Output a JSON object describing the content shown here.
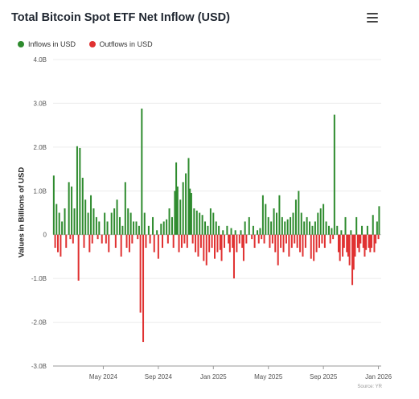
{
  "title": "Total Bitcoin Spot ETF Net Inflow (USD)",
  "menu_icon": "hamburger-menu-icon",
  "legend": [
    {
      "label": "Inflows in USD",
      "color": "#2e8b2e"
    },
    {
      "label": "Outflows in USD",
      "color": "#e03131"
    }
  ],
  "source": "Source: YR",
  "chart_data": {
    "type": "bar",
    "title": "Total Bitcoin Spot ETF Net Inflow (USD)",
    "ylabel": "Values in Billions of USD",
    "xlabel": "",
    "ylim": [
      -3.0,
      4.0
    ],
    "y_ticks": [
      "4.0B",
      "3.0B",
      "2.0B",
      "1.0B",
      "0",
      "-1.0B",
      "-2.0B",
      "-3.0B"
    ],
    "y_tick_values": [
      4,
      3,
      2,
      1,
      0,
      -1,
      -2,
      -3
    ],
    "x_tick_labels": [
      "May 2024",
      "Sep 2024",
      "Jan 2025",
      "May 2025",
      "Sep 2025",
      "Jan 2026"
    ],
    "x_tick_months": [
      4.0,
      8.0,
      12.0,
      16.0,
      20.0,
      24.0
    ],
    "x_range_months": [
      0.35,
      24.2
    ],
    "grid": true,
    "legend_position": "top-left",
    "series": [
      {
        "name": "Inflows in USD",
        "color": "#2e8b2e",
        "points": [
          [
            0.4,
            1.35
          ],
          [
            0.6,
            0.7
          ],
          [
            0.8,
            0.5
          ],
          [
            1.0,
            0.3
          ],
          [
            1.2,
            0.6
          ],
          [
            1.5,
            1.2
          ],
          [
            1.7,
            1.1
          ],
          [
            1.9,
            0.6
          ],
          [
            2.1,
            2.02
          ],
          [
            2.3,
            1.98
          ],
          [
            2.5,
            1.3
          ],
          [
            2.7,
            0.8
          ],
          [
            2.9,
            0.5
          ],
          [
            3.1,
            0.9
          ],
          [
            3.3,
            0.6
          ],
          [
            3.5,
            0.4
          ],
          [
            3.7,
            0.3
          ],
          [
            4.1,
            0.5
          ],
          [
            4.3,
            0.3
          ],
          [
            4.6,
            0.5
          ],
          [
            4.8,
            0.6
          ],
          [
            5.0,
            0.8
          ],
          [
            5.2,
            0.4
          ],
          [
            5.4,
            0.2
          ],
          [
            5.6,
            1.2
          ],
          [
            5.8,
            0.6
          ],
          [
            6.0,
            0.5
          ],
          [
            6.2,
            0.3
          ],
          [
            6.4,
            0.3
          ],
          [
            6.6,
            0.2
          ],
          [
            6.8,
            2.88
          ],
          [
            7.0,
            0.5
          ],
          [
            7.3,
            0.2
          ],
          [
            7.6,
            0.4
          ],
          [
            7.9,
            0.1
          ],
          [
            8.2,
            0.25
          ],
          [
            8.4,
            0.3
          ],
          [
            8.6,
            0.35
          ],
          [
            8.8,
            0.6
          ],
          [
            9.0,
            0.4
          ],
          [
            9.2,
            1.0
          ],
          [
            9.3,
            1.65
          ],
          [
            9.4,
            1.1
          ],
          [
            9.6,
            0.8
          ],
          [
            9.8,
            1.2
          ],
          [
            10.0,
            1.4
          ],
          [
            10.2,
            1.75
          ],
          [
            10.3,
            1.05
          ],
          [
            10.4,
            0.95
          ],
          [
            10.6,
            0.6
          ],
          [
            10.8,
            0.55
          ],
          [
            11.0,
            0.5
          ],
          [
            11.2,
            0.45
          ],
          [
            11.4,
            0.3
          ],
          [
            11.6,
            0.2
          ],
          [
            11.8,
            0.6
          ],
          [
            12.0,
            0.5
          ],
          [
            12.2,
            0.3
          ],
          [
            12.4,
            0.2
          ],
          [
            12.7,
            0.1
          ],
          [
            13.0,
            0.2
          ],
          [
            13.3,
            0.15
          ],
          [
            13.6,
            0.1
          ],
          [
            14.0,
            0.1
          ],
          [
            14.3,
            0.3
          ],
          [
            14.6,
            0.4
          ],
          [
            14.9,
            0.2
          ],
          [
            15.2,
            0.1
          ],
          [
            15.4,
            0.15
          ],
          [
            15.6,
            0.9
          ],
          [
            15.8,
            0.7
          ],
          [
            16.0,
            0.4
          ],
          [
            16.2,
            0.3
          ],
          [
            16.4,
            0.6
          ],
          [
            16.6,
            0.5
          ],
          [
            16.8,
            0.9
          ],
          [
            17.0,
            0.4
          ],
          [
            17.2,
            0.3
          ],
          [
            17.4,
            0.35
          ],
          [
            17.6,
            0.4
          ],
          [
            17.8,
            0.5
          ],
          [
            18.0,
            0.8
          ],
          [
            18.2,
            1.0
          ],
          [
            18.4,
            0.5
          ],
          [
            18.6,
            0.3
          ],
          [
            18.8,
            0.4
          ],
          [
            19.0,
            0.3
          ],
          [
            19.2,
            0.2
          ],
          [
            19.4,
            0.3
          ],
          [
            19.6,
            0.5
          ],
          [
            19.8,
            0.6
          ],
          [
            20.0,
            0.7
          ],
          [
            20.2,
            0.3
          ],
          [
            20.4,
            0.2
          ],
          [
            20.6,
            0.15
          ],
          [
            20.8,
            2.74
          ],
          [
            21.0,
            0.2
          ],
          [
            21.3,
            0.1
          ],
          [
            21.6,
            0.4
          ],
          [
            22.0,
            0.1
          ],
          [
            22.4,
            0.4
          ],
          [
            22.8,
            0.2
          ],
          [
            23.2,
            0.2
          ],
          [
            23.6,
            0.45
          ],
          [
            23.9,
            0.3
          ],
          [
            24.05,
            0.65
          ]
        ]
      },
      {
        "name": "Outflows in USD",
        "color": "#e03131",
        "points": [
          [
            0.5,
            -0.3
          ],
          [
            0.7,
            -0.4
          ],
          [
            0.9,
            -0.5
          ],
          [
            1.3,
            -0.3
          ],
          [
            1.6,
            -0.1
          ],
          [
            1.8,
            -0.2
          ],
          [
            2.2,
            -1.05
          ],
          [
            2.6,
            -0.3
          ],
          [
            3.0,
            -0.4
          ],
          [
            3.2,
            -0.2
          ],
          [
            3.6,
            -0.1
          ],
          [
            3.9,
            -0.2
          ],
          [
            4.2,
            -0.2
          ],
          [
            4.4,
            -0.4
          ],
          [
            4.9,
            -0.3
          ],
          [
            5.3,
            -0.5
          ],
          [
            5.7,
            -0.3
          ],
          [
            5.9,
            -0.4
          ],
          [
            6.1,
            -0.2
          ],
          [
            6.5,
            -0.1
          ],
          [
            6.7,
            -1.78
          ],
          [
            6.9,
            -2.45
          ],
          [
            7.1,
            -0.3
          ],
          [
            7.4,
            -0.2
          ],
          [
            7.7,
            -0.4
          ],
          [
            8.0,
            -0.55
          ],
          [
            8.3,
            -0.3
          ],
          [
            8.7,
            -0.2
          ],
          [
            9.1,
            -0.3
          ],
          [
            9.5,
            -0.4
          ],
          [
            9.7,
            -0.3
          ],
          [
            9.9,
            -0.2
          ],
          [
            10.1,
            -0.3
          ],
          [
            10.5,
            -0.2
          ],
          [
            10.7,
            -0.4
          ],
          [
            10.9,
            -0.5
          ],
          [
            11.1,
            -0.3
          ],
          [
            11.3,
            -0.6
          ],
          [
            11.5,
            -0.7
          ],
          [
            11.7,
            -0.4
          ],
          [
            11.9,
            -0.3
          ],
          [
            12.1,
            -0.55
          ],
          [
            12.3,
            -0.4
          ],
          [
            12.5,
            -0.35
          ],
          [
            12.6,
            -0.6
          ],
          [
            12.8,
            -0.3
          ],
          [
            13.1,
            -0.2
          ],
          [
            13.2,
            -0.4
          ],
          [
            13.4,
            -0.3
          ],
          [
            13.5,
            -1.0
          ],
          [
            13.7,
            -0.4
          ],
          [
            13.9,
            -0.2
          ],
          [
            14.1,
            -0.3
          ],
          [
            14.2,
            -0.6
          ],
          [
            14.4,
            -0.2
          ],
          [
            14.8,
            -0.1
          ],
          [
            15.0,
            -0.3
          ],
          [
            15.3,
            -0.2
          ],
          [
            15.5,
            -0.1
          ],
          [
            15.7,
            -0.2
          ],
          [
            16.1,
            -0.3
          ],
          [
            16.3,
            -0.2
          ],
          [
            16.5,
            -0.4
          ],
          [
            16.7,
            -0.7
          ],
          [
            16.9,
            -0.3
          ],
          [
            17.1,
            -0.4
          ],
          [
            17.3,
            -0.2
          ],
          [
            17.5,
            -0.5
          ],
          [
            17.7,
            -0.3
          ],
          [
            17.9,
            -0.2
          ],
          [
            18.1,
            -0.3
          ],
          [
            18.3,
            -0.4
          ],
          [
            18.5,
            -0.5
          ],
          [
            18.7,
            -0.3
          ],
          [
            19.1,
            -0.55
          ],
          [
            19.3,
            -0.6
          ],
          [
            19.5,
            -0.4
          ],
          [
            19.7,
            -0.3
          ],
          [
            19.9,
            -0.2
          ],
          [
            20.1,
            -0.3
          ],
          [
            20.5,
            -0.2
          ],
          [
            20.7,
            -0.1
          ],
          [
            21.1,
            -0.4
          ],
          [
            21.2,
            -0.6
          ],
          [
            21.4,
            -0.5
          ],
          [
            21.5,
            -0.3
          ],
          [
            21.7,
            -0.4
          ],
          [
            21.8,
            -0.5
          ],
          [
            21.9,
            -0.7
          ],
          [
            22.1,
            -1.15
          ],
          [
            22.2,
            -0.8
          ],
          [
            22.3,
            -0.5
          ],
          [
            22.5,
            -0.3
          ],
          [
            22.6,
            -0.4
          ],
          [
            22.7,
            -0.2
          ],
          [
            22.9,
            -0.3
          ],
          [
            23.0,
            -0.5
          ],
          [
            23.1,
            -0.35
          ],
          [
            23.3,
            -0.3
          ],
          [
            23.4,
            -0.4
          ],
          [
            23.5,
            -0.3
          ],
          [
            23.7,
            -0.4
          ],
          [
            23.8,
            -0.2
          ],
          [
            24.0,
            -0.1
          ]
        ]
      }
    ]
  }
}
